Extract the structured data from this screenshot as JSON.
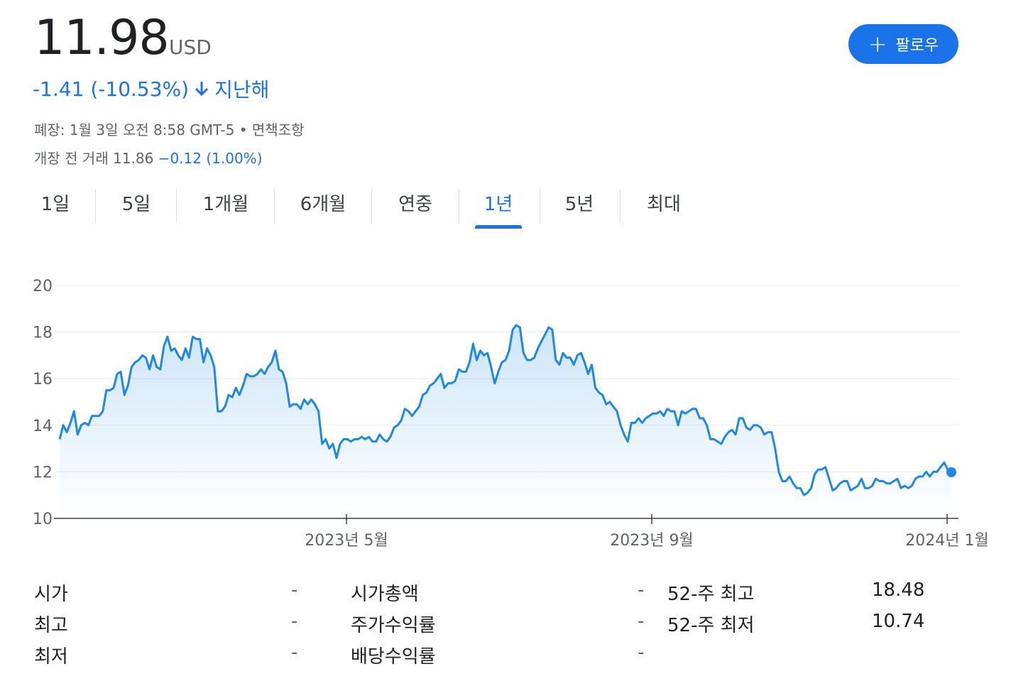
{
  "quote": {
    "price": "11.98",
    "currency": "USD",
    "change": "-1.41 (-10.53%)",
    "period": "지난해",
    "follow_label": "팔로우",
    "closed_info": "폐장: 1월 3일 오전 8:58 GMT-5 •",
    "disclaimer": "면책조항",
    "premarket_label": "개장 전 거래",
    "premarket_price": "11.86",
    "premarket_change": "−0.12 (1.00%)"
  },
  "tabs": [
    "1일",
    "5일",
    "1개월",
    "6개월",
    "연중",
    "1년",
    "5년",
    "최대"
  ],
  "active_tab": "1년",
  "colors": {
    "accent": "#1a73e8",
    "line": "#1e88e5"
  },
  "chart_data": {
    "type": "area",
    "x_labels": [
      "2023년 5월",
      "2023년 9월",
      "2024년 1월"
    ],
    "y_ticks": [
      10,
      12,
      14,
      16,
      18,
      20
    ],
    "ylim": [
      10,
      20
    ],
    "values": [
      13.4,
      14.0,
      13.7,
      14.1,
      14.6,
      13.6,
      14.0,
      14.1,
      14.0,
      14.4,
      14.4,
      14.4,
      14.6,
      15.5,
      15.5,
      15.6,
      16.2,
      16.3,
      15.3,
      15.7,
      16.5,
      16.7,
      16.8,
      17.0,
      16.9,
      16.4,
      17.0,
      16.5,
      16.4,
      17.4,
      17.8,
      17.2,
      17.3,
      17.0,
      16.8,
      17.3,
      16.9,
      17.8,
      17.7,
      17.7,
      16.7,
      17.3,
      17.0,
      16.5,
      14.6,
      14.6,
      14.8,
      15.3,
      15.2,
      15.6,
      15.3,
      15.7,
      16.2,
      16.1,
      16.1,
      16.2,
      16.4,
      16.2,
      16.5,
      16.7,
      17.2,
      16.4,
      16.3,
      15.8,
      14.8,
      14.9,
      14.9,
      14.7,
      15.1,
      14.9,
      15.1,
      14.9,
      14.6,
      13.2,
      13.4,
      13.0,
      13.2,
      12.6,
      13.2,
      13.4,
      13.4,
      13.3,
      13.4,
      13.4,
      13.5,
      13.4,
      13.5,
      13.3,
      13.3,
      13.6,
      13.4,
      13.3,
      13.5,
      13.9,
      14.0,
      14.2,
      14.7,
      14.6,
      14.4,
      14.6,
      14.8,
      15.3,
      15.4,
      15.7,
      15.8,
      16.0,
      16.2,
      15.6,
      15.8,
      15.8,
      15.9,
      16.4,
      16.3,
      16.3,
      16.7,
      17.5,
      16.8,
      17.2,
      17.0,
      17.1,
      16.5,
      15.8,
      16.3,
      16.7,
      16.8,
      17.2,
      18.1,
      18.3,
      18.2,
      17.1,
      16.8,
      16.8,
      16.9,
      17.3,
      17.6,
      17.9,
      18.2,
      18.1,
      16.8,
      16.6,
      17.1,
      16.9,
      16.9,
      16.6,
      17.0,
      17.1,
      16.7,
      16.2,
      16.6,
      15.6,
      15.4,
      15.3,
      14.9,
      15.0,
      14.8,
      14.6,
      14.0,
      13.6,
      13.3,
      14.1,
      14.1,
      14.3,
      14.1,
      14.3,
      14.4,
      14.5,
      14.5,
      14.6,
      14.4,
      14.7,
      14.6,
      14.6,
      14.0,
      14.6,
      14.5,
      14.6,
      14.7,
      14.7,
      14.3,
      14.3,
      14.0,
      13.4,
      13.4,
      13.3,
      13.2,
      13.5,
      13.7,
      13.8,
      13.6,
      14.3,
      14.3,
      13.9,
      13.8,
      14.0,
      14.0,
      13.9,
      13.6,
      13.7,
      13.7,
      13.0,
      12.0,
      11.6,
      11.6,
      11.8,
      11.5,
      11.3,
      11.3,
      11.0,
      11.1,
      11.3,
      11.9,
      12.1,
      12.1,
      12.2,
      11.7,
      11.2,
      11.3,
      11.5,
      11.6,
      11.6,
      11.2,
      11.3,
      11.4,
      11.7,
      11.3,
      11.3,
      11.4,
      11.7,
      11.6,
      11.6,
      11.5,
      11.5,
      11.6,
      11.7,
      11.3,
      11.4,
      11.3,
      11.4,
      11.7,
      11.8,
      11.8,
      12.0,
      11.8,
      12.0,
      12.0,
      12.2,
      12.4,
      12.1,
      11.98
    ],
    "last_value": 11.98
  },
  "stats": {
    "col1": [
      {
        "label": "시가",
        "value": "-"
      },
      {
        "label": "최고",
        "value": "-"
      },
      {
        "label": "최저",
        "value": "-"
      }
    ],
    "col2": [
      {
        "label": "시가총액",
        "value": "-"
      },
      {
        "label": "주가수익률",
        "value": "-"
      },
      {
        "label": "배당수익률",
        "value": "-"
      }
    ],
    "col3": [
      {
        "label": "52-주 최고",
        "value": "18.48"
      },
      {
        "label": "52-주 최저",
        "value": "10.74"
      }
    ]
  }
}
